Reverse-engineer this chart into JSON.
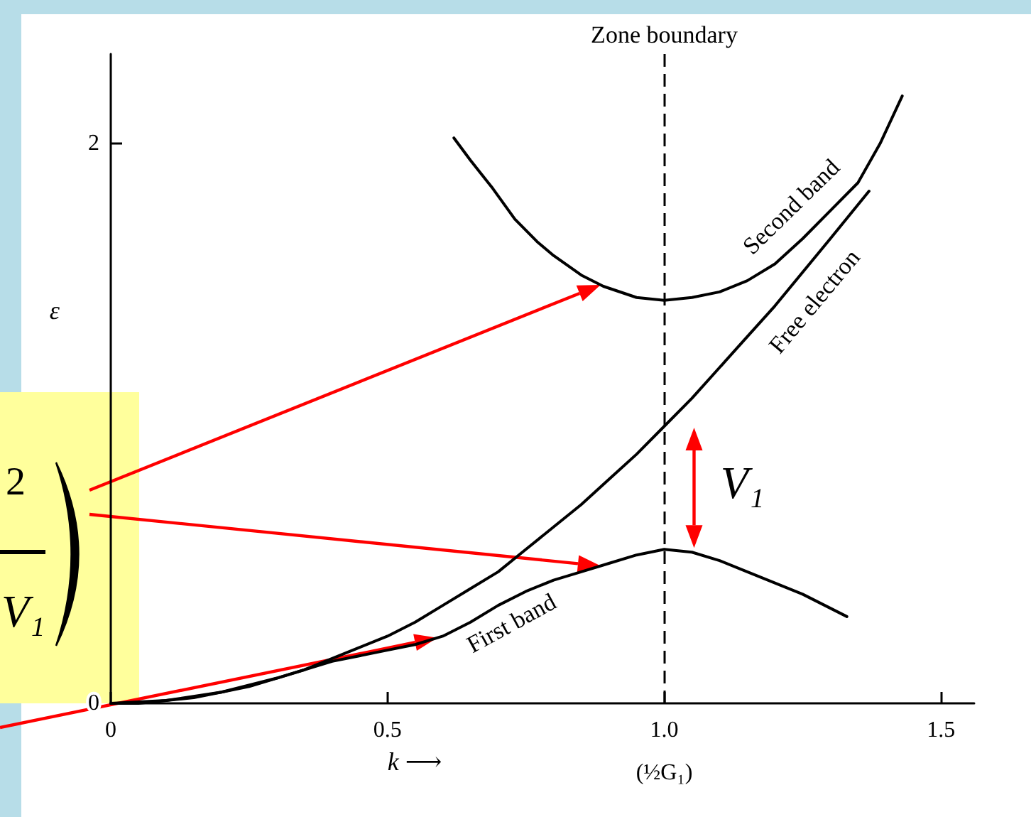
{
  "chart_data": {
    "type": "line",
    "xlabel": "k ⟶",
    "ylabel": "ε",
    "xlim": [
      0,
      1.56
    ],
    "xticks": [
      0,
      0.5,
      {
        "value": 1,
        "label": "1.0\n(½G₁)"
      },
      1.5
    ],
    "ylim": [
      0,
      2.32
    ],
    "yticks": [
      0,
      2
    ],
    "series": [
      {
        "name": "First band",
        "color": "#000000",
        "x": [
          0,
          0.1,
          0.2,
          0.3,
          0.4,
          0.5,
          0.55,
          0.6,
          0.65,
          0.7,
          0.75,
          0.8,
          0.85,
          0.9,
          0.95,
          1.0,
          1.05,
          1.1,
          1.15,
          1.2,
          1.25,
          1.33
        ],
        "values": [
          0,
          0.01,
          0.04,
          0.09,
          0.15,
          0.19,
          0.21,
          0.24,
          0.29,
          0.35,
          0.4,
          0.44,
          0.47,
          0.5,
          0.53,
          0.55,
          0.54,
          0.51,
          0.47,
          0.43,
          0.39,
          0.31
        ]
      },
      {
        "name": "Free electron",
        "color": "#000000",
        "x": [
          0,
          0.05,
          0.1,
          0.15,
          0.2,
          0.25,
          0.3,
          0.35,
          0.4,
          0.45,
          0.5,
          0.55,
          0.6,
          0.65,
          0.7,
          0.75,
          0.8,
          0.85,
          0.9,
          0.95,
          1.0,
          1.05,
          1.1,
          1.15,
          1.2,
          1.25,
          1.3,
          1.37
        ],
        "values": [
          0,
          0,
          0.01,
          0.02,
          0.04,
          0.06,
          0.09,
          0.12,
          0.16,
          0.2,
          0.24,
          0.29,
          0.35,
          0.41,
          0.47,
          0.55,
          0.63,
          0.71,
          0.8,
          0.89,
          0.99,
          1.09,
          1.2,
          1.31,
          1.42,
          1.54,
          1.66,
          1.83
        ]
      },
      {
        "name": "Second band",
        "color": "#000000",
        "x": [
          0.62,
          0.65,
          0.69,
          0.73,
          0.77,
          0.8,
          0.85,
          0.89,
          0.95,
          1.0,
          1.05,
          1.1,
          1.15,
          1.2,
          1.25,
          1.3,
          1.35,
          1.39,
          1.43
        ],
        "values": [
          2.02,
          1.94,
          1.84,
          1.73,
          1.65,
          1.6,
          1.53,
          1.49,
          1.45,
          1.44,
          1.45,
          1.47,
          1.51,
          1.57,
          1.66,
          1.76,
          1.86,
          2.0,
          2.17
        ]
      }
    ],
    "ref_lines": [
      {
        "axis": "x",
        "value": 1,
        "label": "Zone boundary",
        "line_style": "dashed",
        "color": "#000000"
      }
    ],
    "annotations": [
      "2",
      "V₁",
      "V₁"
    ],
    "marker": "none"
  }
}
